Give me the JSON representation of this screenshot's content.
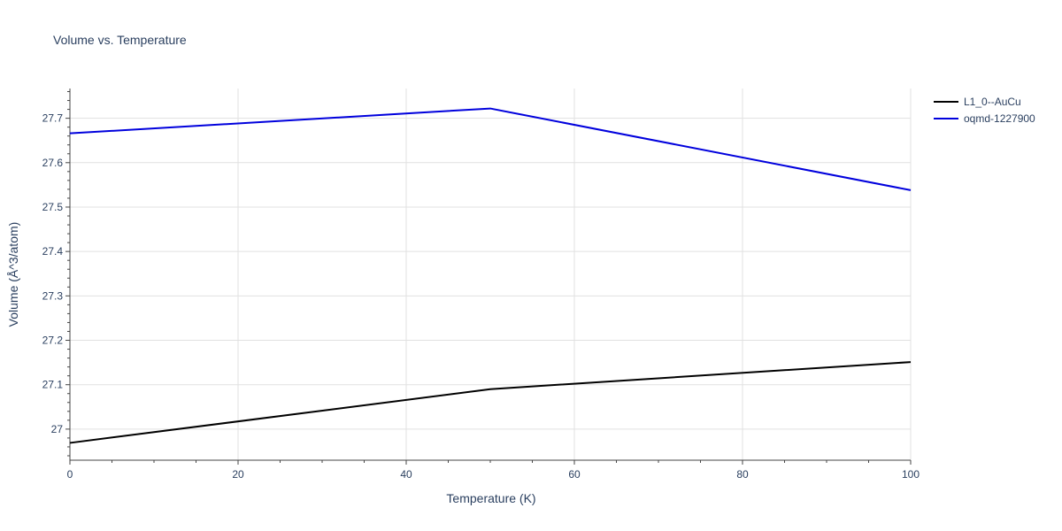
{
  "chart_data": {
    "type": "line",
    "title": "Volume vs. Temperature",
    "xlabel": "Temperature (K)",
    "ylabel": "Volume (Å^3/atom)",
    "xlim": [
      0,
      100
    ],
    "ylim": [
      26.93,
      27.767
    ],
    "x_ticks": [
      0,
      20,
      40,
      60,
      80,
      100
    ],
    "y_ticks": [
      27,
      27.1,
      27.2,
      27.3,
      27.4,
      27.5,
      27.6,
      27.7
    ],
    "y_tick_labels": [
      "27",
      "27.1",
      "27.2",
      "27.3",
      "27.4",
      "27.5",
      "27.6",
      "27.7"
    ],
    "grid": true,
    "legend_position": "top-right",
    "series": [
      {
        "name": "L1_0--AuCu",
        "color": "#000000",
        "x": [
          0,
          50,
          100
        ],
        "y": [
          26.969,
          27.09,
          27.151
        ]
      },
      {
        "name": "oqmd-1227900",
        "color": "#0000dd",
        "x": [
          0,
          50,
          100
        ],
        "y": [
          27.666,
          27.722,
          27.538
        ]
      }
    ]
  }
}
